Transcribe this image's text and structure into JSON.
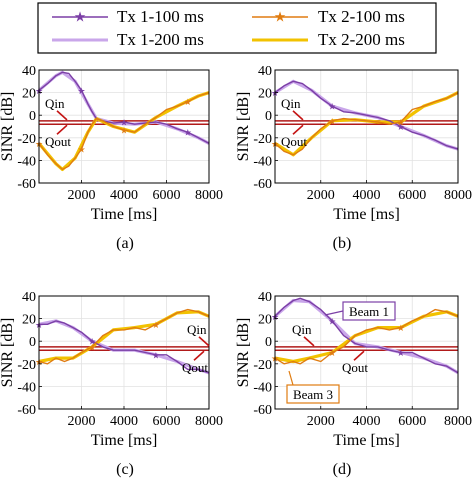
{
  "legend": {
    "entries": [
      {
        "label": "Tx 1-100 ms",
        "color": "#7b3fa6",
        "marker": "star"
      },
      {
        "label": "Tx 2-100 ms",
        "color": "#e07c10",
        "marker": "star"
      },
      {
        "label": "Tx 1-200 ms",
        "color": "#c9a6ea",
        "marker": "none"
      },
      {
        "label": "Tx 2-200 ms",
        "color": "#f2c200",
        "marker": "none"
      }
    ]
  },
  "annotations": {
    "qin": "Qin",
    "qout": "Qout",
    "beam1": "Beam 1",
    "beam3": "Beam 3"
  },
  "chart_data": [
    {
      "type": "line",
      "caption": "(a)",
      "xlabel": "Time [ms]",
      "ylabel": "SINR [dB]",
      "xlim": [
        0,
        8000
      ],
      "ylim": [
        -60,
        40
      ],
      "xticks": [
        2000,
        4000,
        6000,
        8000
      ],
      "yticks": [
        -60,
        -40,
        -20,
        0,
        20,
        40
      ],
      "grid": true,
      "thresholds": {
        "qin": -5,
        "qout": -8
      },
      "series": [
        {
          "name": "Tx 1-100 ms",
          "x": [
            0,
            400,
            800,
            1100,
            1400,
            1700,
            2000,
            2300,
            2500,
            2700,
            3000,
            3500,
            4000,
            4500,
            5000,
            5500,
            6000,
            6500,
            7000,
            7500,
            8000
          ],
          "y": [
            22,
            28,
            35,
            38,
            37,
            30,
            22,
            10,
            3,
            -3,
            -5,
            -7,
            -6,
            -8,
            -7,
            -6,
            -8,
            -12,
            -15,
            -20,
            -25
          ]
        },
        {
          "name": "Tx 2-100 ms",
          "x": [
            0,
            400,
            800,
            1100,
            1400,
            1700,
            2000,
            2300,
            2500,
            2700,
            3000,
            3500,
            4000,
            4500,
            5000,
            5500,
            6000,
            6500,
            7000,
            7500,
            8000
          ],
          "y": [
            -25,
            -35,
            -43,
            -48,
            -45,
            -38,
            -30,
            -15,
            -8,
            -3,
            -5,
            -10,
            -13,
            -15,
            -8,
            -2,
            5,
            8,
            12,
            17,
            20
          ]
        },
        {
          "name": "Tx 1-200 ms",
          "x": [
            0,
            800,
            1100,
            1700,
            2300,
            2700,
            3500,
            4500,
            5500,
            6500,
            7500,
            8000
          ],
          "y": [
            22,
            35,
            38,
            30,
            10,
            -3,
            -7,
            -8,
            -6,
            -12,
            -20,
            -25
          ]
        },
        {
          "name": "Tx 2-200 ms",
          "x": [
            0,
            800,
            1100,
            1700,
            2300,
            2700,
            3500,
            4500,
            5500,
            6500,
            7500,
            8000
          ],
          "y": [
            -25,
            -43,
            -48,
            -38,
            -15,
            -3,
            -10,
            -15,
            -2,
            8,
            17,
            20
          ]
        }
      ]
    },
    {
      "type": "line",
      "caption": "(b)",
      "xlabel": "Time [ms]",
      "ylabel": "SINR [dB]",
      "xlim": [
        0,
        8000
      ],
      "ylim": [
        -60,
        40
      ],
      "xticks": [
        2000,
        4000,
        6000,
        8000
      ],
      "yticks": [
        -60,
        -40,
        -20,
        0,
        20,
        40
      ],
      "grid": true,
      "thresholds": {
        "qin": -5,
        "qout": -8
      },
      "series": [
        {
          "name": "Tx 1-100 ms",
          "x": [
            0,
            400,
            800,
            1200,
            1600,
            2000,
            2500,
            3000,
            3500,
            4000,
            4500,
            5000,
            5500,
            6000,
            6500,
            7000,
            7500,
            8000
          ],
          "y": [
            20,
            26,
            30,
            28,
            22,
            15,
            8,
            3,
            2,
            0,
            -2,
            -5,
            -10,
            -15,
            -18,
            -22,
            -27,
            -30
          ]
        },
        {
          "name": "Tx 2-100 ms",
          "x": [
            0,
            400,
            800,
            1200,
            1600,
            2000,
            2500,
            3000,
            3500,
            4000,
            4500,
            5000,
            5500,
            6000,
            6500,
            7000,
            7500,
            8000
          ],
          "y": [
            -25,
            -32,
            -35,
            -30,
            -20,
            -12,
            -5,
            -3,
            -4,
            -5,
            -6,
            -8,
            -6,
            5,
            8,
            12,
            15,
            20
          ]
        },
        {
          "name": "Tx 1-200 ms",
          "x": [
            0,
            800,
            1600,
            2500,
            3500,
            4500,
            5500,
            6500,
            7500,
            8000
          ],
          "y": [
            20,
            30,
            22,
            8,
            2,
            -2,
            -10,
            -18,
            -27,
            -30
          ]
        },
        {
          "name": "Tx 2-200 ms",
          "x": [
            0,
            800,
            1600,
            2500,
            3500,
            4500,
            5500,
            6500,
            7500,
            8000
          ],
          "y": [
            -25,
            -35,
            -20,
            -5,
            -4,
            -6,
            -6,
            8,
            15,
            20
          ]
        }
      ]
    },
    {
      "type": "line",
      "caption": "(c)",
      "xlabel": "Time [ms]",
      "ylabel": "SINR [dB]",
      "xlim": [
        0,
        8000
      ],
      "ylim": [
        -60,
        40
      ],
      "xticks": [
        2000,
        4000,
        6000,
        8000
      ],
      "yticks": [
        -60,
        -40,
        -20,
        0,
        20,
        40
      ],
      "grid": true,
      "thresholds": {
        "qin": -5,
        "qout": -8
      },
      "series": [
        {
          "name": "Tx 1-100 ms",
          "x": [
            0,
            400,
            800,
            1200,
            1600,
            2000,
            2500,
            3000,
            3500,
            4000,
            4500,
            5000,
            5500,
            6000,
            6500,
            7000,
            7500,
            8000
          ],
          "y": [
            15,
            15,
            18,
            16,
            12,
            8,
            0,
            -5,
            -8,
            -8,
            -8,
            -10,
            -12,
            -12,
            -18,
            -25,
            -25,
            -28
          ]
        },
        {
          "name": "Tx 2-100 ms",
          "x": [
            0,
            400,
            800,
            1200,
            1600,
            2000,
            2500,
            3000,
            3500,
            4000,
            4500,
            5000,
            5500,
            6000,
            6500,
            7000,
            7500,
            8000
          ],
          "y": [
            -18,
            -20,
            -15,
            -18,
            -15,
            -10,
            -5,
            5,
            10,
            10,
            12,
            10,
            15,
            20,
            25,
            28,
            26,
            22
          ]
        },
        {
          "name": "Tx 1-200 ms",
          "x": [
            0,
            800,
            1600,
            2500,
            3500,
            4500,
            5500,
            6500,
            7500,
            8000
          ],
          "y": [
            15,
            18,
            12,
            0,
            -8,
            -8,
            -12,
            -18,
            -25,
            -28
          ]
        },
        {
          "name": "Tx 2-200 ms",
          "x": [
            0,
            800,
            1600,
            2500,
            3500,
            4500,
            5500,
            6500,
            7500,
            8000
          ],
          "y": [
            -18,
            -15,
            -15,
            -5,
            10,
            12,
            15,
            25,
            26,
            22
          ]
        }
      ]
    },
    {
      "type": "line",
      "caption": "(d)",
      "xlabel": "Time [ms]",
      "ylabel": "SINR [dB]",
      "xlim": [
        0,
        8000
      ],
      "ylim": [
        -60,
        40
      ],
      "xticks": [
        2000,
        4000,
        6000,
        8000
      ],
      "yticks": [
        -60,
        -40,
        -20,
        0,
        20,
        40
      ],
      "grid": true,
      "thresholds": {
        "qin": -5,
        "qout": -8
      },
      "series": [
        {
          "name": "Tx 1-100 ms",
          "x": [
            0,
            400,
            800,
            1100,
            1500,
            2000,
            2500,
            3000,
            3500,
            4000,
            4500,
            5000,
            5500,
            6000,
            6500,
            7000,
            7500,
            8000
          ],
          "y": [
            22,
            30,
            36,
            38,
            35,
            28,
            18,
            5,
            -2,
            -5,
            -5,
            -8,
            -10,
            -10,
            -15,
            -20,
            -22,
            -28
          ]
        },
        {
          "name": "Tx 2-100 ms",
          "x": [
            0,
            400,
            800,
            1100,
            1500,
            2000,
            2500,
            3000,
            3500,
            4000,
            4500,
            5000,
            5500,
            6000,
            6500,
            7000,
            7500,
            8000
          ],
          "y": [
            -15,
            -20,
            -18,
            -20,
            -15,
            -18,
            -10,
            -5,
            5,
            10,
            12,
            10,
            12,
            18,
            22,
            28,
            26,
            22
          ]
        },
        {
          "name": "Tx 1-200 ms",
          "x": [
            0,
            800,
            1500,
            2500,
            3500,
            4500,
            5500,
            6500,
            7500,
            8000
          ],
          "y": [
            22,
            36,
            35,
            18,
            -2,
            -5,
            -10,
            -15,
            -22,
            -28
          ]
        },
        {
          "name": "Tx 2-200 ms",
          "x": [
            0,
            800,
            1500,
            2500,
            3500,
            4500,
            5500,
            6500,
            7500,
            8000
          ],
          "y": [
            -15,
            -18,
            -15,
            -10,
            5,
            12,
            12,
            22,
            26,
            22
          ]
        }
      ]
    }
  ]
}
